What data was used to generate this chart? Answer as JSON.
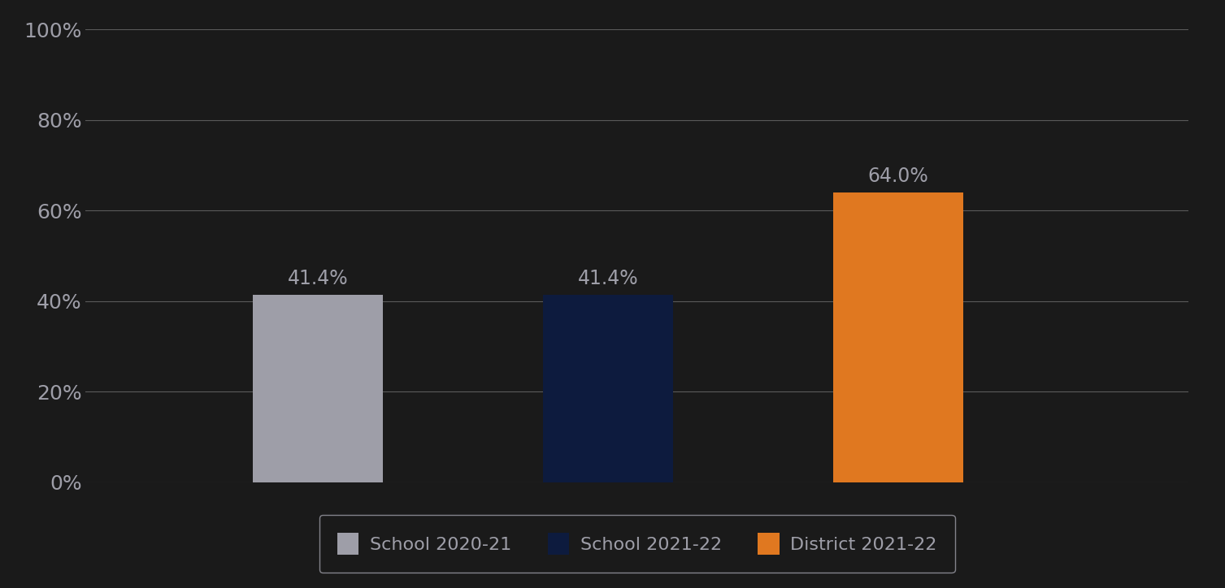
{
  "categories": [
    "School 2020-21",
    "School 2021-22",
    "District 2021-22"
  ],
  "values": [
    41.4,
    41.4,
    64.0
  ],
  "bar_colors": [
    "#9e9ea8",
    "#0d1b3e",
    "#e07820"
  ],
  "label_color": "#9e9ea8",
  "label_fontsize": 17,
  "ylim": [
    0,
    100
  ],
  "yticks": [
    0,
    20,
    40,
    60,
    80,
    100
  ],
  "ytick_labels": [
    "0%",
    "20%",
    "40%",
    "60%",
    "80%",
    "100%"
  ],
  "background_color": "#1a1a1a",
  "grid_color": "#5a5a5a",
  "tick_color": "#9e9ea8",
  "legend_labels": [
    "School 2020-21",
    "School 2021-22",
    "District 2021-22"
  ],
  "legend_colors": [
    "#9e9ea8",
    "#0d1b3e",
    "#e07820"
  ],
  "legend_edge_color": "#9e9ea8",
  "legend_text_color": "#9e9ea8",
  "bar_width": 0.45,
  "x_positions": [
    1,
    2,
    3
  ],
  "xlim": [
    0.2,
    4.0
  ]
}
